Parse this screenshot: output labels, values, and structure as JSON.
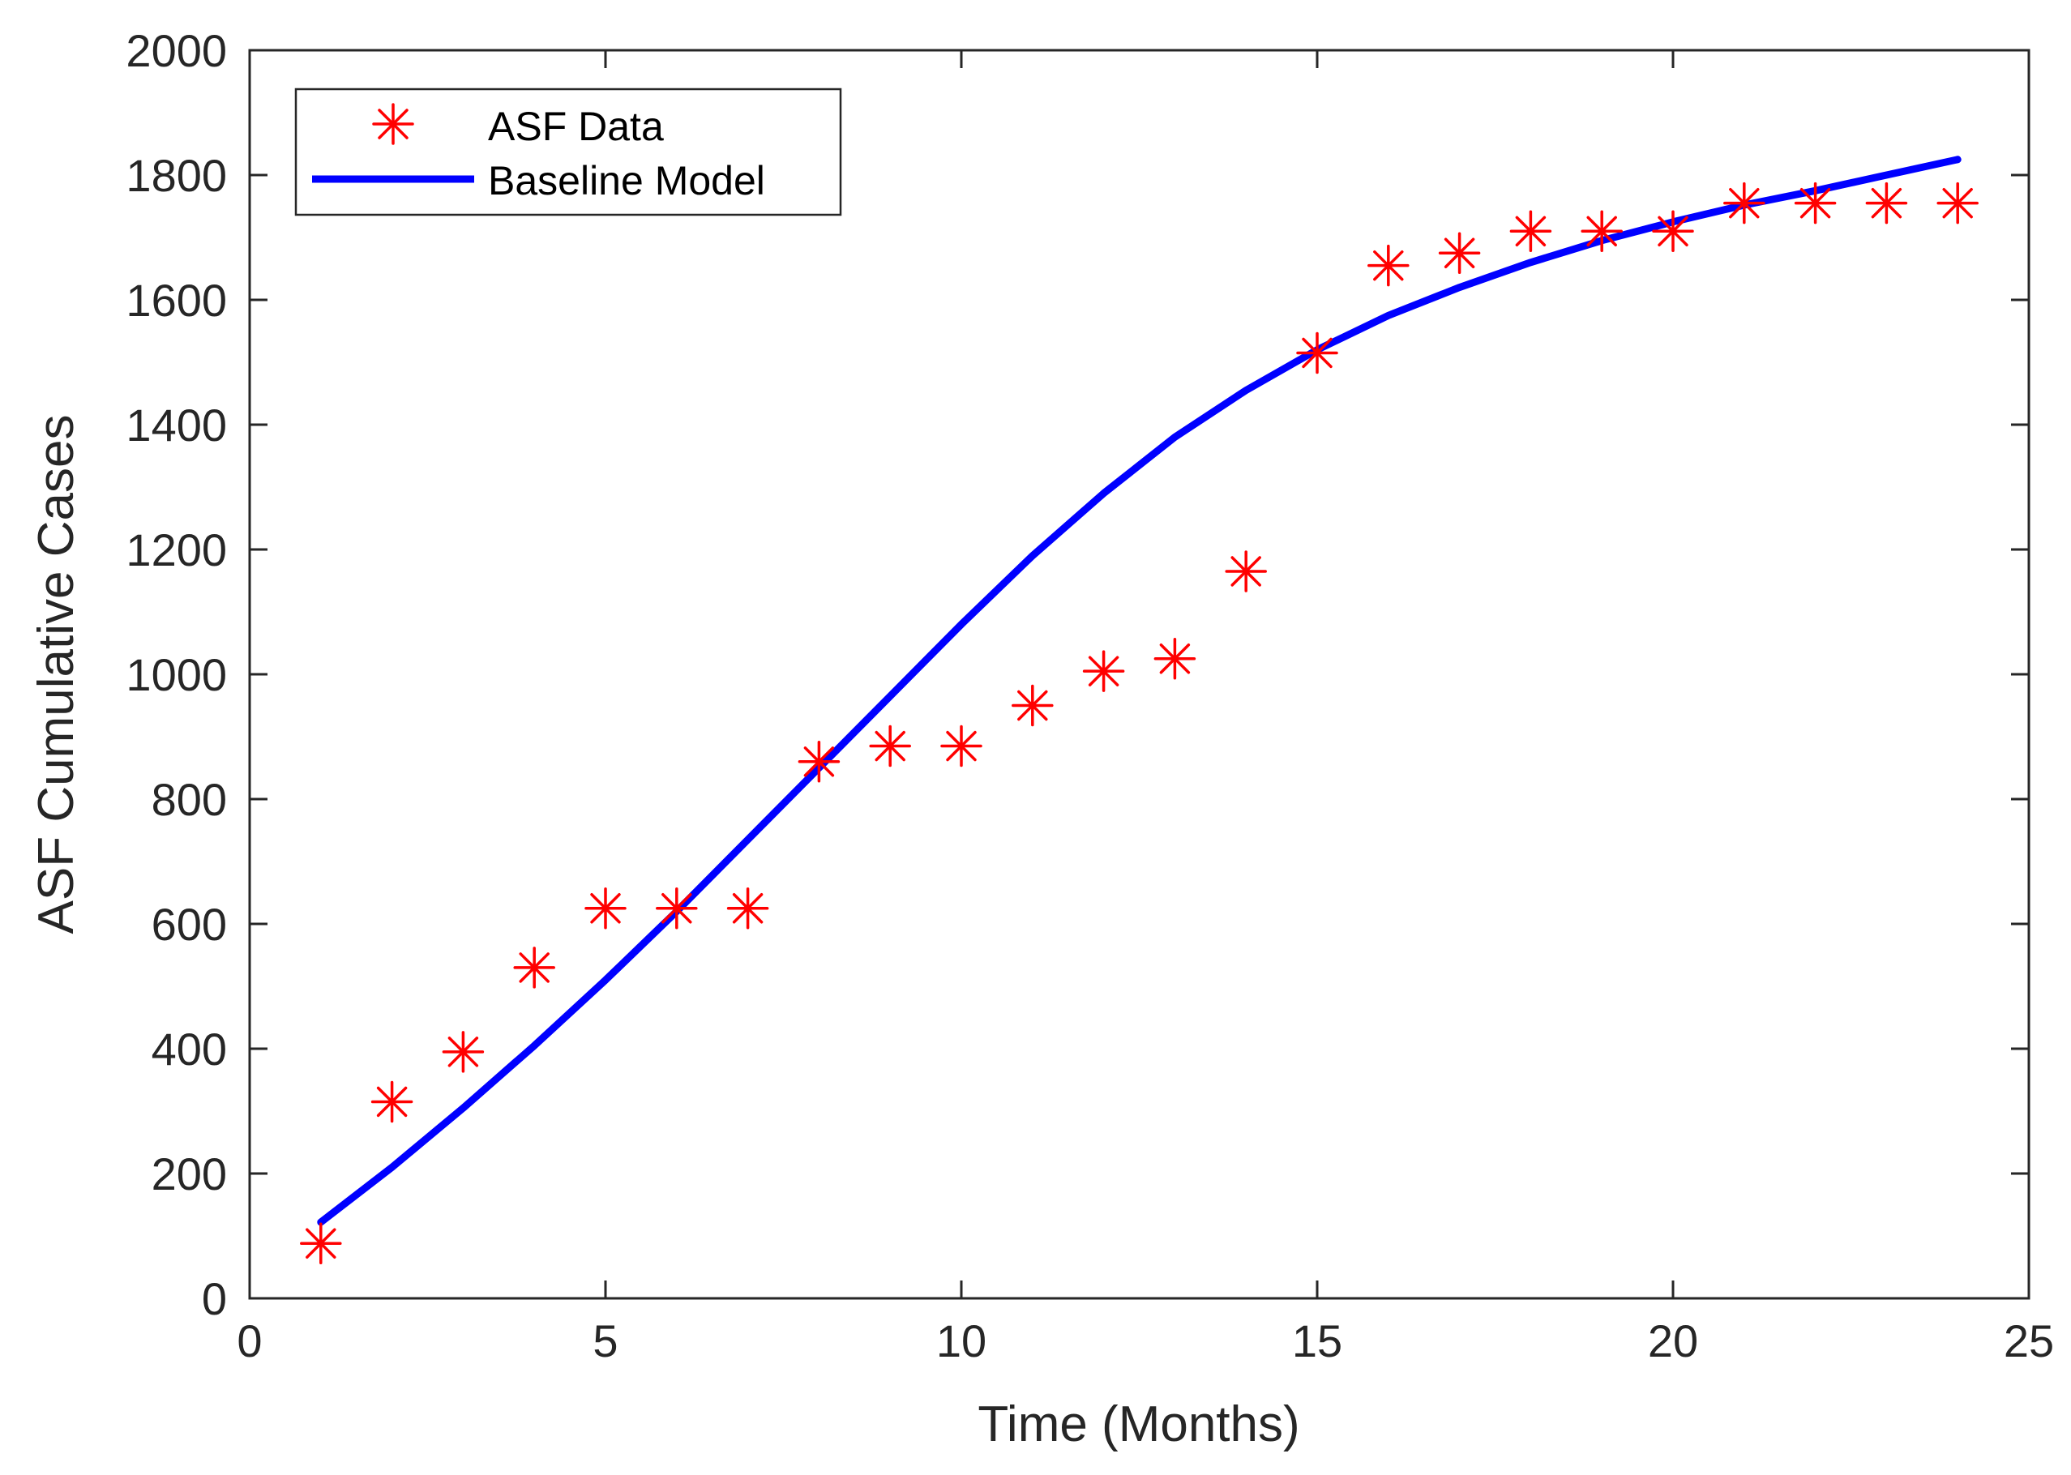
{
  "chart_data": {
    "type": "line",
    "title": "",
    "xlabel": "Time (Months)",
    "ylabel": "ASF Cumulative Cases",
    "xlim": [
      0,
      25
    ],
    "ylim": [
      0,
      2000
    ],
    "xticks": [
      0,
      5,
      10,
      15,
      20,
      25
    ],
    "yticks": [
      0,
      200,
      400,
      600,
      800,
      1000,
      1200,
      1400,
      1600,
      1800,
      2000
    ],
    "grid": false,
    "legend_location": "top-left",
    "series": [
      {
        "name": "ASF Data",
        "style": "marker",
        "marker": "asterisk",
        "color": "#ff0000",
        "x": [
          1,
          2,
          3,
          4,
          5,
          6,
          7,
          8,
          9,
          10,
          11,
          12,
          13,
          14,
          15,
          16,
          17,
          18,
          19,
          20,
          21,
          22,
          23,
          24
        ],
        "y": [
          88,
          315,
          395,
          530,
          625,
          625,
          625,
          860,
          885,
          885,
          950,
          1005,
          1025,
          1165,
          1515,
          1655,
          1675,
          1710,
          1710,
          1710,
          1755,
          1755,
          1755,
          1755
        ]
      },
      {
        "name": "Baseline Model",
        "style": "line",
        "color": "#0000ff",
        "x": [
          1,
          2,
          3,
          4,
          5,
          6,
          7,
          8,
          9,
          10,
          11,
          12,
          13,
          14,
          15,
          16,
          17,
          18,
          19,
          20,
          21,
          22,
          23,
          24
        ],
        "y": [
          122,
          210,
          305,
          405,
          510,
          620,
          735,
          850,
          965,
          1080,
          1190,
          1290,
          1380,
          1455,
          1520,
          1575,
          1620,
          1660,
          1695,
          1725,
          1752,
          1775,
          1800,
          1825
        ]
      }
    ]
  }
}
